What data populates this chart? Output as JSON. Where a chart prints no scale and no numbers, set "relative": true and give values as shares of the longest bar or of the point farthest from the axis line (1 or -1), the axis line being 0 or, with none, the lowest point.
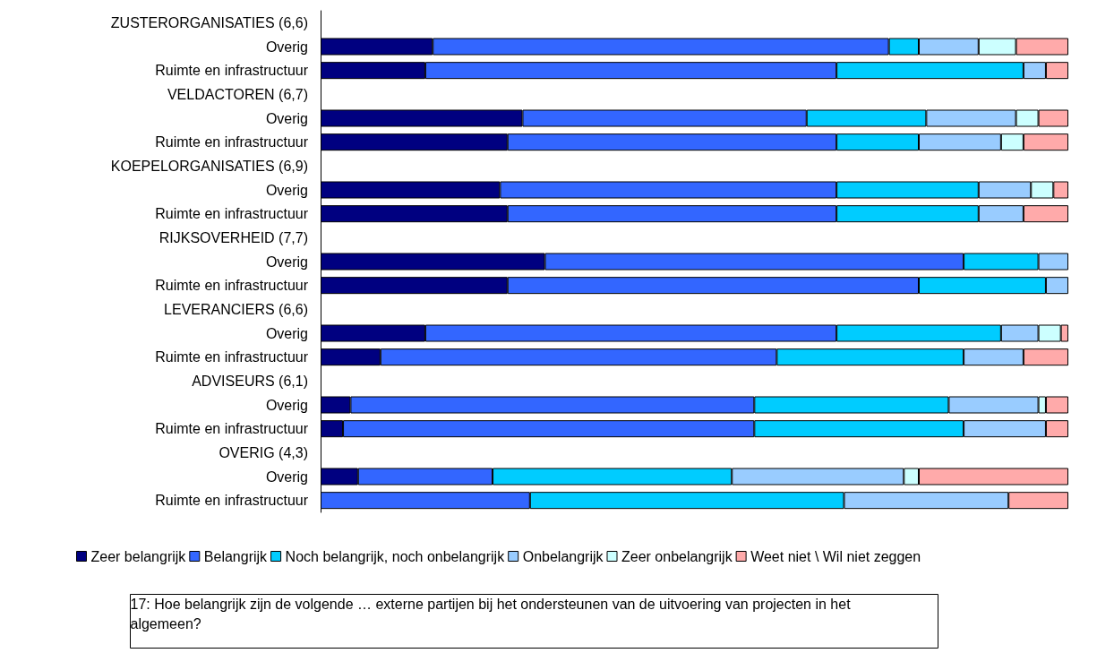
{
  "chart_data": {
    "type": "bar",
    "orientation": "horizontal",
    "stacked": true,
    "relative": true,
    "legend": "bottom",
    "categories": [
      "ZUSTERORGANISATIES (6,6)",
      "Overig",
      "Ruimte en infrastructuur",
      "VELDACTOREN (6,7)",
      "Overig",
      "Ruimte en infrastructuur",
      "KOEPELORGANISATIES (6,9)",
      "Overig",
      "Ruimte en infrastructuur",
      "RIJKSOVERHEID (7,7)",
      "Overig",
      "Ruimte en infrastructuur",
      "LEVERANCIERS (6,6)",
      "Overig",
      "Ruimte en infrastructuur",
      "ADVISEURS (6,1)",
      "Overig",
      "Ruimte en infrastructuur",
      "OVERIG (4,3)",
      "Overig",
      "Ruimte en infrastructuur"
    ],
    "series": [
      {
        "name": "Zeer belangrijk",
        "color": "#000080",
        "values": [
          null,
          0.15,
          0.14,
          null,
          0.27,
          0.25,
          null,
          0.24,
          0.25,
          null,
          0.3,
          0.25,
          null,
          0.14,
          0.08,
          null,
          0.04,
          0.03,
          null,
          0.05,
          0
        ]
      },
      {
        "name": "Belangrijk",
        "color": "#3366ff",
        "values": [
          null,
          0.61,
          0.55,
          null,
          0.38,
          0.44,
          null,
          0.45,
          0.44,
          null,
          0.56,
          0.55,
          null,
          0.55,
          0.53,
          null,
          0.54,
          0.55,
          null,
          0.18,
          0.28
        ]
      },
      {
        "name": "Noch belangrijk, noch onbelangrijk",
        "color": "#00ccff",
        "values": [
          null,
          0.04,
          0.25,
          null,
          0.16,
          0.11,
          null,
          0.19,
          0.19,
          null,
          0.1,
          0.17,
          null,
          0.22,
          0.25,
          null,
          0.26,
          0.28,
          null,
          0.32,
          0.42
        ]
      },
      {
        "name": "Onbelangrijk",
        "color": "#99ccff",
        "values": [
          null,
          0.08,
          0.03,
          null,
          0.12,
          0.11,
          null,
          0.07,
          0.06,
          null,
          0.04,
          0.03,
          null,
          0.05,
          0.08,
          null,
          0.12,
          0.11,
          null,
          0.23,
          0.22
        ]
      },
      {
        "name": "Zeer onbelangrijk",
        "color": "#ccffff",
        "values": [
          null,
          0.05,
          0,
          null,
          0.03,
          0.03,
          null,
          0.03,
          0,
          null,
          0,
          0,
          null,
          0.03,
          0,
          null,
          0.01,
          0,
          null,
          0.02,
          0
        ]
      },
      {
        "name": "Weet niet \\ Wil niet zeggen",
        "color": "#ffaaaa",
        "values": [
          null,
          0.07,
          0.03,
          null,
          0.04,
          0.06,
          null,
          0.02,
          0.06,
          null,
          0,
          0,
          null,
          0.01,
          0.06,
          null,
          0.03,
          0.03,
          null,
          0.2,
          0.08
        ]
      }
    ],
    "annotations": [
      "17: Hoe belangrijk zijn de volgende … externe partijen bij het ondersteunen van de uitvoering van projecten in het algemeen?"
    ]
  }
}
